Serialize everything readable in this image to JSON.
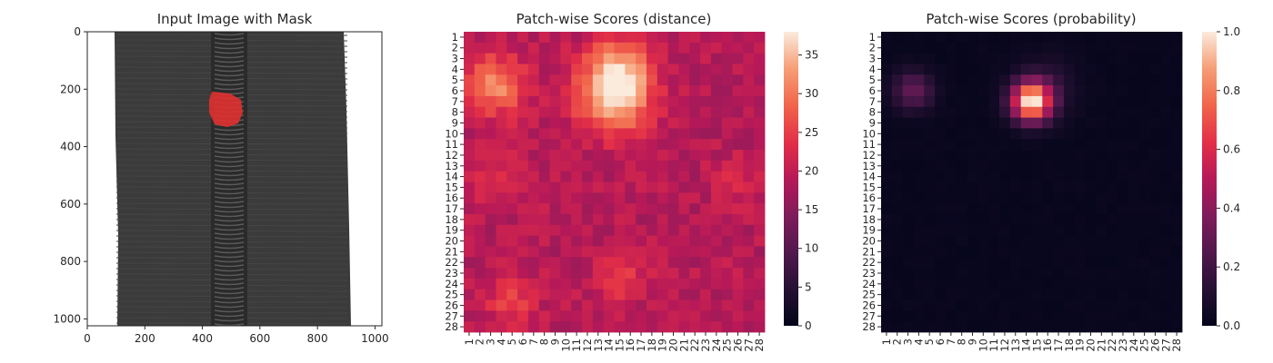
{
  "chart_data": [
    {
      "type": "image",
      "title": "Input Image with Mask",
      "xlim": [
        0,
        1024
      ],
      "ylim": [
        1024,
        0
      ],
      "xticks": [
        "0",
        "200",
        "400",
        "600",
        "800",
        "1000"
      ],
      "yticks": [
        "0",
        "200",
        "400",
        "600",
        "800",
        "1000"
      ],
      "colors": {
        "fabric": "#3a3a3a",
        "teeth": "#2a2a2a",
        "background": "#ffffff",
        "mask": "#e03030"
      }
    },
    {
      "type": "heatmap",
      "title": "Patch-wise Scores (distance)",
      "rows": [
        "1",
        "2",
        "3",
        "4",
        "5",
        "6",
        "7",
        "8",
        "9",
        "10",
        "11",
        "12",
        "13",
        "14",
        "15",
        "16",
        "17",
        "18",
        "19",
        "20",
        "21",
        "22",
        "23",
        "24",
        "25",
        "26",
        "27",
        "28"
      ],
      "cols": [
        "1",
        "2",
        "3",
        "4",
        "5",
        "6",
        "7",
        "8",
        "9",
        "10",
        "11",
        "12",
        "13",
        "14",
        "15",
        "16",
        "17",
        "18",
        "19",
        "20",
        "21",
        "22",
        "23",
        "24",
        "25",
        "26",
        "27",
        "28"
      ],
      "vmin": 0,
      "vmax": 38,
      "colorbar_ticks": [
        "0",
        "5",
        "10",
        "15",
        "20",
        "25",
        "30",
        "35"
      ],
      "base": 19,
      "hotspots": [
        {
          "row": 6.5,
          "col": 14.5,
          "radius": 2.3,
          "peak": 38
        },
        {
          "row": 5.5,
          "col": 3.5,
          "radius": 2.0,
          "peak": 31
        },
        {
          "row": 3.5,
          "col": 15,
          "radius": 2.0,
          "peak": 28
        },
        {
          "row": 25.5,
          "col": 5,
          "radius": 1.6,
          "peak": 25
        },
        {
          "row": 14,
          "col": 3.5,
          "radius": 1.5,
          "peak": 24
        },
        {
          "row": 23.5,
          "col": 15,
          "radius": 1.6,
          "peak": 25
        },
        {
          "row": 14.5,
          "col": 26,
          "radius": 1.3,
          "peak": 23
        }
      ]
    },
    {
      "type": "heatmap",
      "title": "Patch-wise Scores (probability)",
      "rows": [
        "1",
        "2",
        "3",
        "4",
        "5",
        "6",
        "7",
        "8",
        "9",
        "10",
        "11",
        "12",
        "13",
        "14",
        "15",
        "16",
        "17",
        "18",
        "19",
        "20",
        "21",
        "22",
        "23",
        "24",
        "25",
        "26",
        "27",
        "28"
      ],
      "cols": [
        "1",
        "2",
        "3",
        "4",
        "5",
        "6",
        "7",
        "8",
        "9",
        "10",
        "11",
        "12",
        "13",
        "14",
        "15",
        "16",
        "17",
        "18",
        "19",
        "20",
        "21",
        "22",
        "23",
        "24",
        "25",
        "26",
        "27",
        "28"
      ],
      "vmin": 0,
      "vmax": 1,
      "colorbar_ticks": [
        "0.0",
        "0.2",
        "0.4",
        "0.6",
        "0.8",
        "1.0"
      ],
      "base": 0.02,
      "hotspots": [
        {
          "row": 7,
          "col": 14.5,
          "radius": 1.3,
          "peak": 1.0
        },
        {
          "row": 6,
          "col": 3.5,
          "radius": 1.3,
          "peak": 0.3
        },
        {
          "row": 5.5,
          "col": 16,
          "radius": 2.0,
          "peak": 0.12
        }
      ]
    }
  ]
}
